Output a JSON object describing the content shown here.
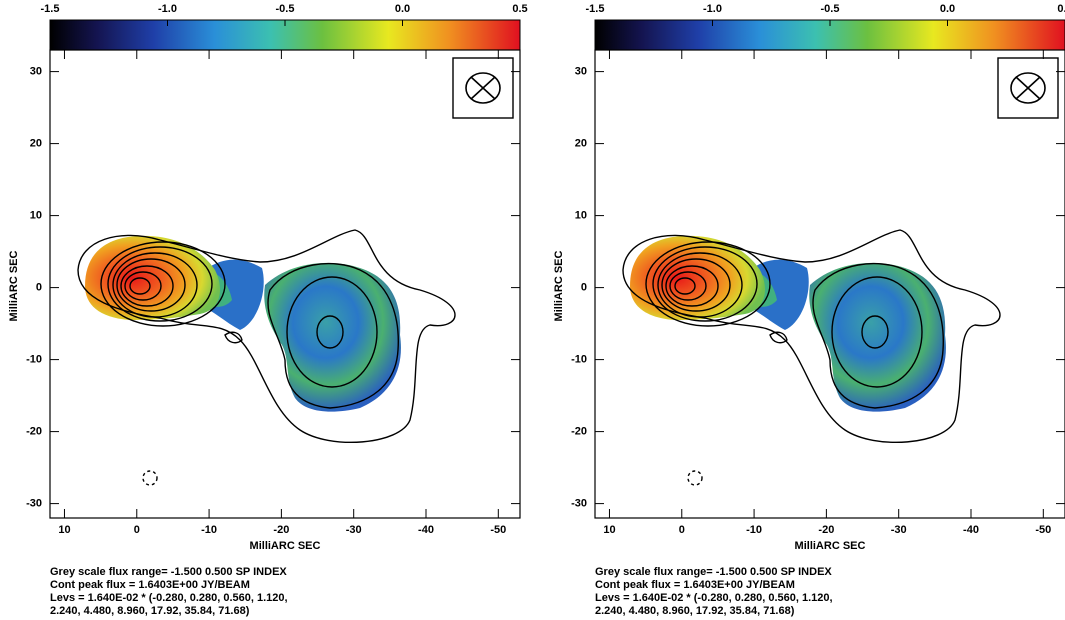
{
  "chart_data": [
    {
      "type": "image",
      "xlabel": "MilliARC SEC",
      "ylabel": "MilliARC SEC",
      "xlim": [
        12,
        -53
      ],
      "ylim": [
        -32,
        33
      ],
      "xticks": [
        10,
        0,
        -10,
        -20,
        -30,
        -40,
        -50
      ],
      "yticks": [
        30,
        20,
        10,
        0,
        -10,
        -20,
        -30
      ],
      "colorbar": {
        "lim": [
          -1.5,
          0.5
        ],
        "ticks": [
          -1.5,
          {
            "value": -1,
            "label": "-1.0"
          },
          -0.5,
          {
            "value": 0,
            "label": "0.0"
          },
          0.5
        ]
      },
      "caption": [
        "Grey scale flux range= -1.500 0.500 SP INDEX",
        "Cont peak flux =  1.6403E+00 JY/BEAM",
        "Levs = 1.640E-02 * (-0.280, 0.280, 0.560, 1.120,",
        "2.240, 4.480, 8.960, 17.92, 35.84, 71.68)"
      ]
    },
    {
      "type": "image",
      "xlabel": "MilliARC SEC",
      "ylabel": "MilliARC SEC",
      "xlim": [
        12,
        -53
      ],
      "ylim": [
        -32,
        33
      ],
      "xticks": [
        10,
        0,
        -10,
        -20,
        -30,
        -40,
        -50
      ],
      "yticks": [
        30,
        20,
        10,
        0,
        -10,
        -20,
        -30
      ],
      "colorbar": {
        "lim": [
          -1.5,
          0.5
        ],
        "ticks": [
          -1.5,
          {
            "value": -1,
            "label": "-1.0"
          },
          -0.5,
          {
            "value": 0,
            "label": "0.0"
          },
          0.5
        ]
      },
      "caption": [
        "Grey scale flux range= -1.500 0.500 SP INDEX",
        "Cont peak flux =  1.6403E+00 JY/BEAM",
        "Levs = 1.640E-02 * (-0.280, 0.280, 0.560, 1.120,",
        "2.240, 4.480, 8.960, 17.92, 35.84, 71.68)"
      ]
    }
  ]
}
